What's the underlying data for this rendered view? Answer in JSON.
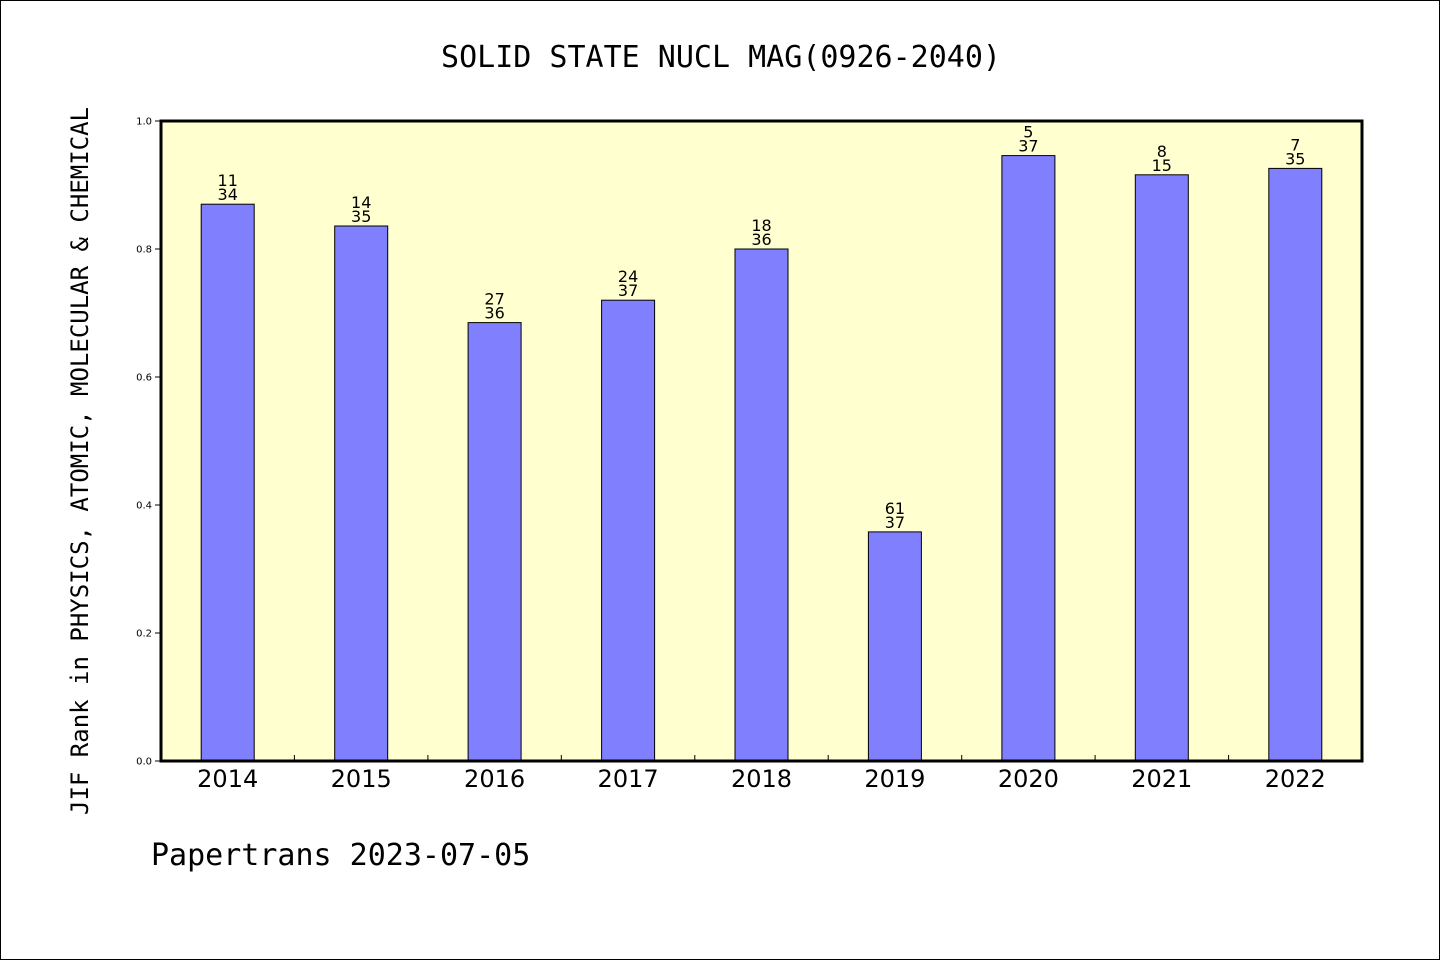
{
  "chart_data": {
    "type": "bar",
    "title": "SOLID STATE NUCL MAG(0926-2040)",
    "ylabel": "JIF Rank in PHYSICS, ATOMIC, MOLECULAR & CHEMICAL",
    "xlabel": "",
    "categories": [
      "2014",
      "2015",
      "2016",
      "2017",
      "2018",
      "2019",
      "2020",
      "2021",
      "2022"
    ],
    "values": [
      0.87,
      0.836,
      0.685,
      0.72,
      0.8,
      0.358,
      0.946,
      0.916,
      0.926
    ],
    "bar_labels": [
      {
        "rank": "11",
        "total": "34"
      },
      {
        "rank": "14",
        "total": "35"
      },
      {
        "rank": "27",
        "total": "36"
      },
      {
        "rank": "24",
        "total": "37"
      },
      {
        "rank": "18",
        "total": "36"
      },
      {
        "rank": "61",
        "total": "37"
      },
      {
        "rank": "5",
        "total": "37"
      },
      {
        "rank": "8",
        "total": "15"
      },
      {
        "rank": "7",
        "total": "35"
      }
    ],
    "ylim": [
      0,
      1.0
    ],
    "yticks": [
      "0.0",
      "0.2",
      "0.4",
      "0.6",
      "0.8",
      "1.0"
    ],
    "grid": false,
    "legend": "none",
    "colors": {
      "bar_fill": "#8080ff",
      "plot_background": "#ffffd0",
      "axis": "#000000"
    }
  },
  "footer": "Papertrans 2023-07-05"
}
